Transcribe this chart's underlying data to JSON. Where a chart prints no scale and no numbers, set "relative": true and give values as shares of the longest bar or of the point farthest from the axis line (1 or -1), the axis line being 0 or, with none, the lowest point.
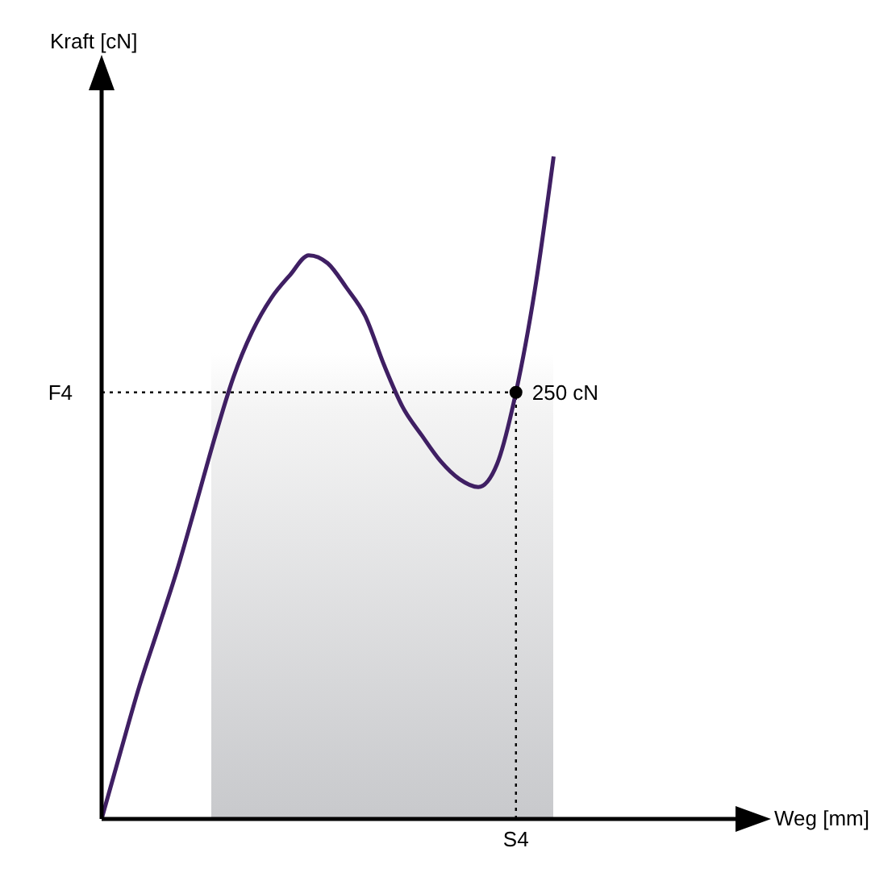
{
  "chart_data": {
    "type": "line",
    "relative": true,
    "xlabel": "Weg [mm]",
    "ylabel": "Kraft [cN]",
    "categories": [
      null,
      null,
      null,
      null,
      null,
      null,
      null,
      null,
      null,
      null,
      null,
      null,
      null,
      null,
      null,
      null,
      null,
      null,
      null,
      null,
      null,
      null,
      null,
      null,
      null,
      null,
      null,
      null,
      null,
      null,
      null,
      null,
      null,
      null,
      null
    ],
    "series": [
      {
        "color": "#3f1f63",
        "values": [
          0,
          0.101,
          0.2,
          0.287,
          0.375,
          0.474,
          0.575,
          0.667,
          0.736,
          0.786,
          0.821,
          0.851,
          0.839,
          0.802,
          0.759,
          0.685,
          0.621,
          0.579,
          0.54,
          0.513,
          0.501,
          0.536,
          0.644,
          0.798,
          1,
          null,
          null,
          null,
          null,
          null,
          null,
          null,
          null,
          null,
          null
        ]
      }
    ],
    "ref_lines": [
      {
        "axis": "y",
        "value": 0.644,
        "label": "F4",
        "line_style": "dotted",
        "color": "#000000"
      },
      {
        "axis": "x",
        "label": "S4",
        "line_style": "dotted",
        "color": "#000000"
      }
    ],
    "annotations": [
      "250 cN"
    ],
    "grid": false,
    "legend": false,
    "marker": "none",
    "line_style": "solid"
  }
}
